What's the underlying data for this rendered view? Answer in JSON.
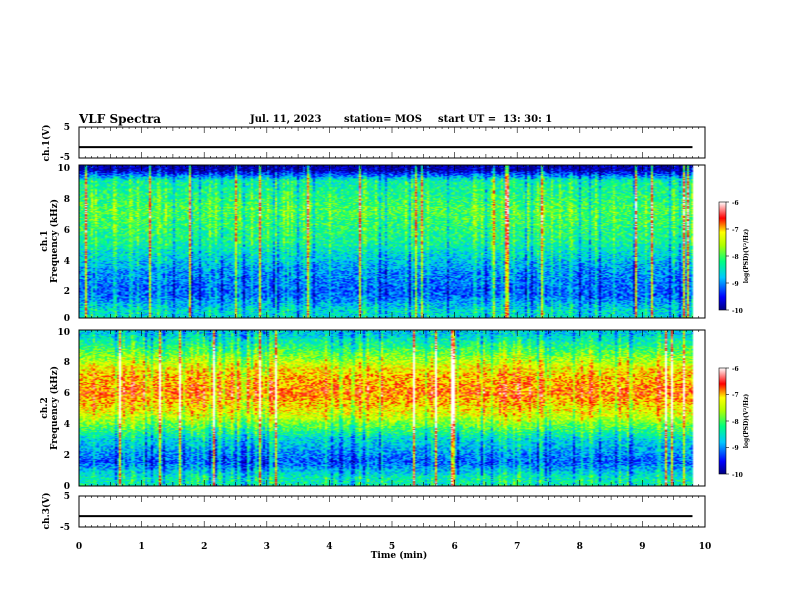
{
  "header": {
    "title": "VLF Spectra",
    "date": "Jul. 11, 2023",
    "station": "station= MOS",
    "start": "start UT =  13: 30: 1"
  },
  "chart_data": [
    {
      "type": "line",
      "ylabel": "ch.1(V)",
      "ylim": [
        -5,
        5
      ],
      "y_ticks": [
        "5",
        "-5"
      ],
      "x": [
        0,
        9.8
      ],
      "values": [
        -1.5,
        -1.5
      ]
    },
    {
      "type": "heatmap",
      "ylabel_top": "ch.1",
      "ylabel": "Frequency (kHz)",
      "ylim": [
        0,
        10
      ],
      "y_ticks": [
        "0",
        "2",
        "4",
        "6",
        "8",
        "10"
      ],
      "x_range": [
        0,
        9.8
      ],
      "colorbar": {
        "label": "log(PSD)(V²/Hz)",
        "ticks": [
          "-6",
          "-7",
          "-8",
          "-9",
          "-10"
        ],
        "range": [
          -10,
          -6
        ]
      },
      "level_profile": [
        {
          "f_khz": 0.5,
          "logpsd": -8.6
        },
        {
          "f_khz": 1.5,
          "logpsd": -9.2
        },
        {
          "f_khz": 3.0,
          "logpsd": -9.0
        },
        {
          "f_khz": 5.0,
          "logpsd": -8.3
        },
        {
          "f_khz": 7.0,
          "logpsd": -8.0
        },
        {
          "f_khz": 9.0,
          "logpsd": -8.4
        },
        {
          "f_khz": 9.7,
          "logpsd": -9.9
        }
      ]
    },
    {
      "type": "heatmap",
      "ylabel_top": "ch.2",
      "ylabel": "Frequency (kHz)",
      "ylim": [
        0,
        10
      ],
      "y_ticks": [
        "0",
        "2",
        "4",
        "6",
        "8",
        "10"
      ],
      "x_range": [
        0,
        9.8
      ],
      "colorbar": {
        "label": "log(PSD)(V²/Hz)",
        "ticks": [
          "-6",
          "-7",
          "-8",
          "-9",
          "-10"
        ],
        "range": [
          -10,
          -6
        ]
      },
      "level_profile": [
        {
          "f_khz": 0.5,
          "logpsd": -8.4
        },
        {
          "f_khz": 1.5,
          "logpsd": -9.2
        },
        {
          "f_khz": 3.0,
          "logpsd": -8.6
        },
        {
          "f_khz": 4.5,
          "logpsd": -7.4
        },
        {
          "f_khz": 6.0,
          "logpsd": -6.8
        },
        {
          "f_khz": 7.5,
          "logpsd": -7.2
        },
        {
          "f_khz": 9.0,
          "logpsd": -8.2
        },
        {
          "f_khz": 9.8,
          "logpsd": -8.7
        }
      ]
    },
    {
      "type": "line",
      "ylabel": "ch.3(V)",
      "ylim": [
        -5,
        5
      ],
      "y_ticks": [
        "5",
        "-5"
      ],
      "x": [
        0,
        9.8
      ],
      "values": [
        -1.5,
        -1.5
      ]
    }
  ],
  "x_axis": {
    "label": "Time (min)",
    "range": [
      0,
      10
    ],
    "ticks": [
      "0",
      "1",
      "2",
      "3",
      "4",
      "5",
      "6",
      "7",
      "8",
      "9",
      "10"
    ]
  },
  "colors": {
    "frame": "#000000",
    "background": "#ffffff"
  }
}
